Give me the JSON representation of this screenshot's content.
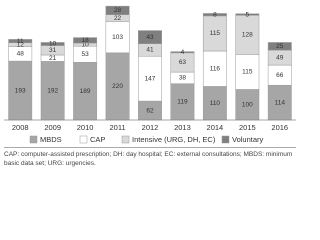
{
  "chart_data": {
    "type": "stacked-bar",
    "categories": [
      "2008",
      "2009",
      "2010",
      "2011",
      "2012",
      "2013",
      "2014",
      "2015",
      "2016"
    ],
    "series": [
      {
        "name": "MBDS",
        "color": "#a6a6a6",
        "values": [
          193,
          192,
          189,
          220,
          62,
          119,
          110,
          100,
          114
        ]
      },
      {
        "name": "CAP",
        "color": "#ffffff",
        "values": [
          48,
          21,
          53,
          103,
          147,
          38,
          116,
          115,
          66
        ]
      },
      {
        "name": "Intensive (URG, DH, EC)",
        "color": "#d9d9d9",
        "values": [
          12,
          31,
          10,
          22,
          41,
          63,
          115,
          128,
          49
        ]
      },
      {
        "name": "Voluntary",
        "color": "#7f7f7f",
        "values": [
          11,
          10,
          18,
          28,
          43,
          4,
          8,
          5,
          25
        ]
      }
    ],
    "ylim": [
      0,
      380
    ],
    "note": "CAP: computer-assisted prescription; DH: day hospital; EC: external consultations; MBDS: minimum basic data set; URG: urgencies."
  }
}
